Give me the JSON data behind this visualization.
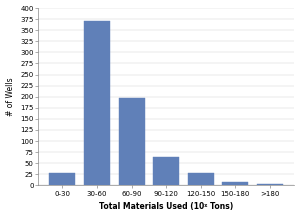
{
  "categories": [
    "0-30",
    "30-60",
    "60-90",
    "90-120",
    "120-150",
    "150-180",
    ">180"
  ],
  "values": [
    28,
    370,
    198,
    65,
    28,
    8,
    2
  ],
  "bar_color": "#6080b8",
  "bar_edgecolor": "#6080b8",
  "title": "",
  "xlabel": "Total Materials Used (10ᵡ Tons)",
  "ylabel": "# of Wells",
  "ylim": [
    0,
    400
  ],
  "yticks": [
    0,
    25,
    50,
    75,
    100,
    125,
    150,
    175,
    200,
    225,
    250,
    275,
    300,
    325,
    350,
    375,
    400
  ],
  "xlabel_fontsize": 5.5,
  "ylabel_fontsize": 5.5,
  "tick_fontsize": 5.0,
  "background_color": "#ffffff"
}
